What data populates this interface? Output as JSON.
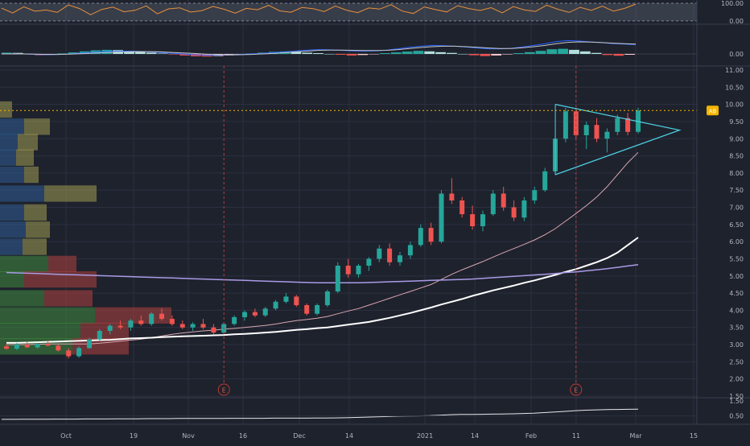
{
  "chart_data": [
    {
      "panel": "oscillator",
      "type": "line",
      "y_ticks": [
        "100.00",
        "0.00"
      ],
      "ylim": [
        0,
        100
      ],
      "band": [
        0,
        100
      ],
      "series": [
        {
          "values": [
            72,
            45,
            80,
            55,
            62,
            48,
            90,
            70,
            35,
            65,
            78,
            52,
            60,
            85,
            40,
            68,
            74,
            50,
            58,
            82,
            66,
            44,
            71,
            63,
            88,
            57,
            49,
            76,
            69,
            53,
            84,
            61,
            47,
            73,
            67,
            92,
            56,
            42,
            79,
            64,
            51,
            86,
            70,
            59,
            75,
            46,
            81,
            62,
            54,
            89,
            66,
            48,
            77,
            60,
            83,
            55,
            71,
            95
          ]
        }
      ]
    },
    {
      "panel": "macd",
      "type": "bar",
      "y_ticks": [
        "0.00"
      ],
      "ylim": [
        -0.6,
        0.6
      ],
      "series": [
        {
          "values": [
            0.05,
            0.04,
            -0.02,
            -0.05,
            -0.03,
            0.02,
            0.06,
            0.1,
            0.14,
            0.16,
            0.15,
            0.12,
            0.09,
            0.05,
            0.02,
            -0.02,
            -0.06,
            -0.09,
            -0.1,
            -0.08,
            -0.05,
            -0.02,
            0.02,
            0.05,
            0.08,
            0.1,
            0.08,
            0.05,
            0.03,
            0.0,
            -0.03,
            -0.06,
            -0.04,
            -0.01,
            0.03,
            0.06,
            0.09,
            0.12,
            0.1,
            0.07,
            0.04,
            0.0,
            -0.05,
            -0.08,
            -0.06,
            -0.02,
            0.03,
            0.07,
            0.12,
            0.18,
            0.2,
            0.16,
            0.1,
            0.04,
            -0.04,
            -0.07,
            -0.03
          ]
        },
        {
          "values": [
            0.0,
            0.01,
            0.0,
            -0.02,
            -0.03,
            -0.02,
            0.0,
            0.03,
            0.06,
            0.09,
            0.1,
            0.11,
            0.1,
            0.08,
            0.06,
            0.03,
            0.0,
            -0.03,
            -0.05,
            -0.05,
            -0.04,
            -0.02,
            0.0,
            0.02,
            0.05,
            0.08,
            0.12,
            0.15,
            0.17,
            0.16,
            0.14,
            0.12,
            0.11,
            0.12,
            0.15,
            0.2,
            0.26,
            0.3,
            0.33,
            0.32,
            0.3,
            0.27,
            0.23,
            0.2,
            0.2,
            0.22,
            0.27,
            0.33,
            0.4,
            0.48,
            0.52,
            0.5,
            0.47,
            0.44,
            0.4,
            0.38,
            0.36
          ]
        },
        {
          "values": [
            0.0,
            0.0,
            0.0,
            -0.01,
            -0.02,
            -0.02,
            -0.01,
            0.01,
            0.03,
            0.05,
            0.07,
            0.08,
            0.09,
            0.09,
            0.08,
            0.06,
            0.04,
            0.02,
            -0.01,
            -0.03,
            -0.04,
            -0.03,
            -0.02,
            0.0,
            0.02,
            0.05,
            0.08,
            0.11,
            0.14,
            0.15,
            0.15,
            0.14,
            0.13,
            0.13,
            0.14,
            0.17,
            0.21,
            0.25,
            0.28,
            0.3,
            0.3,
            0.28,
            0.26,
            0.23,
            0.21,
            0.21,
            0.24,
            0.28,
            0.33,
            0.4,
            0.45,
            0.47,
            0.46,
            0.44,
            0.42,
            0.4,
            0.38
          ]
        }
      ]
    },
    {
      "panel": "price",
      "type": "candlestick",
      "x_ticks": [
        "Oct",
        "19",
        "Nov",
        "16",
        "Dec",
        "14",
        "2021",
        "14",
        "Feb",
        "11",
        "Mar",
        "15"
      ],
      "y_ticks": [
        "1.50",
        "2.00",
        "2.50",
        "3.00",
        "3.50",
        "4.00",
        "4.50",
        "5.00",
        "5.50",
        "6.00",
        "6.50",
        "7.00",
        "7.50",
        "8.00",
        "8.50",
        "9.00",
        "9.50",
        "10.00",
        "10.50",
        "11.00"
      ],
      "ylim": [
        1.5,
        11.0
      ],
      "candles": [
        [
          2.95,
          3.02,
          2.85,
          2.88
        ],
        [
          2.88,
          3.05,
          2.84,
          3.0
        ],
        [
          3.0,
          3.08,
          2.9,
          2.92
        ],
        [
          2.92,
          3.05,
          2.88,
          3.02
        ],
        [
          3.02,
          3.1,
          2.95,
          2.97
        ],
        [
          2.97,
          3.0,
          2.8,
          2.83
        ],
        [
          2.83,
          2.9,
          2.6,
          2.66
        ],
        [
          2.66,
          2.95,
          2.62,
          2.9
        ],
        [
          2.9,
          3.2,
          2.88,
          3.15
        ],
        [
          3.15,
          3.45,
          3.1,
          3.4
        ],
        [
          3.4,
          3.6,
          3.3,
          3.55
        ],
        [
          3.55,
          3.7,
          3.45,
          3.5
        ],
        [
          3.5,
          3.75,
          3.4,
          3.7
        ],
        [
          3.7,
          3.85,
          3.55,
          3.6
        ],
        [
          3.6,
          3.95,
          3.55,
          3.9
        ],
        [
          3.9,
          4.05,
          3.7,
          3.75
        ],
        [
          3.75,
          3.85,
          3.55,
          3.6
        ],
        [
          3.6,
          3.7,
          3.45,
          3.5
        ],
        [
          3.5,
          3.65,
          3.4,
          3.6
        ],
        [
          3.6,
          3.75,
          3.45,
          3.5
        ],
        [
          3.5,
          3.6,
          3.3,
          3.35
        ],
        [
          3.35,
          3.65,
          3.3,
          3.6
        ],
        [
          3.6,
          3.85,
          3.55,
          3.8
        ],
        [
          3.8,
          4.0,
          3.7,
          3.95
        ],
        [
          3.95,
          4.05,
          3.8,
          3.85
        ],
        [
          3.85,
          4.1,
          3.8,
          4.05
        ],
        [
          4.05,
          4.3,
          4.0,
          4.25
        ],
        [
          4.25,
          4.5,
          4.2,
          4.4
        ],
        [
          4.4,
          4.45,
          4.1,
          4.15
        ],
        [
          4.15,
          4.2,
          3.85,
          3.9
        ],
        [
          3.9,
          4.2,
          3.85,
          4.15
        ],
        [
          4.15,
          4.6,
          4.1,
          4.55
        ],
        [
          4.55,
          5.4,
          4.5,
          5.3
        ],
        [
          5.3,
          5.5,
          4.95,
          5.05
        ],
        [
          5.05,
          5.35,
          4.95,
          5.3
        ],
        [
          5.3,
          5.55,
          5.15,
          5.5
        ],
        [
          5.5,
          5.9,
          5.4,
          5.8
        ],
        [
          5.8,
          5.95,
          5.3,
          5.4
        ],
        [
          5.4,
          5.7,
          5.3,
          5.6
        ],
        [
          5.6,
          6.0,
          5.5,
          5.9
        ],
        [
          5.9,
          6.5,
          5.85,
          6.4
        ],
        [
          6.4,
          6.55,
          5.9,
          6.0
        ],
        [
          6.0,
          7.5,
          5.95,
          7.4
        ],
        [
          7.4,
          7.85,
          7.1,
          7.2
        ],
        [
          7.2,
          7.3,
          6.7,
          6.8
        ],
        [
          6.8,
          7.05,
          6.35,
          6.45
        ],
        [
          6.45,
          6.9,
          6.3,
          6.8
        ],
        [
          6.8,
          7.5,
          6.75,
          7.4
        ],
        [
          7.4,
          7.6,
          6.9,
          7.0
        ],
        [
          7.0,
          7.2,
          6.6,
          6.7
        ],
        [
          6.7,
          7.3,
          6.6,
          7.2
        ],
        [
          7.2,
          7.6,
          7.1,
          7.5
        ],
        [
          7.5,
          8.15,
          7.45,
          8.05
        ],
        [
          8.05,
          9.1,
          8.0,
          9.0
        ],
        [
          9.0,
          9.9,
          8.9,
          9.8
        ],
        [
          9.8,
          9.9,
          9.0,
          9.1
        ],
        [
          9.1,
          9.5,
          8.7,
          9.4
        ],
        [
          9.4,
          9.6,
          8.9,
          9.0
        ],
        [
          9.0,
          9.3,
          8.6,
          9.2
        ],
        [
          9.2,
          9.7,
          9.1,
          9.6
        ],
        [
          9.6,
          9.75,
          9.1,
          9.2
        ],
        [
          9.2,
          9.9,
          9.15,
          9.82
        ]
      ],
      "moving_averages": [
        {
          "values": [
            3.0,
            3.0,
            3.0,
            3.01,
            3.02,
            3.02,
            3.02,
            3.02,
            3.02,
            3.04,
            3.07,
            3.1,
            3.13,
            3.16,
            3.2,
            3.25,
            3.3,
            3.34,
            3.37,
            3.4,
            3.42,
            3.45,
            3.47,
            3.5,
            3.53,
            3.56,
            3.6,
            3.65,
            3.7,
            3.73,
            3.77,
            3.82,
            3.9,
            3.98,
            4.05,
            4.15,
            4.25,
            4.35,
            4.45,
            4.55,
            4.65,
            4.75,
            4.9,
            5.05,
            5.18,
            5.3,
            5.42,
            5.55,
            5.68,
            5.8,
            5.92,
            6.05,
            6.2,
            6.38,
            6.6,
            6.82,
            7.05,
            7.3,
            7.6,
            7.95,
            8.3,
            8.6
          ]
        },
        {
          "values": [
            3.05,
            3.05,
            3.06,
            3.07,
            3.08,
            3.09,
            3.1,
            3.11,
            3.12,
            3.13,
            3.14,
            3.16,
            3.18,
            3.19,
            3.2,
            3.22,
            3.23,
            3.24,
            3.25,
            3.26,
            3.27,
            3.28,
            3.3,
            3.31,
            3.33,
            3.35,
            3.37,
            3.4,
            3.43,
            3.45,
            3.48,
            3.5,
            3.54,
            3.58,
            3.62,
            3.66,
            3.72,
            3.78,
            3.85,
            3.92,
            4.0,
            4.08,
            4.17,
            4.25,
            4.33,
            4.42,
            4.5,
            4.58,
            4.65,
            4.72,
            4.8,
            4.87,
            4.95,
            5.03,
            5.12,
            5.2,
            5.3,
            5.4,
            5.52,
            5.68,
            5.9,
            6.12
          ]
        },
        {
          "values": [
            5.1,
            5.09,
            5.08,
            5.07,
            5.06,
            5.05,
            5.04,
            5.03,
            5.02,
            5.01,
            5.0,
            4.99,
            4.98,
            4.97,
            4.96,
            4.95,
            4.94,
            4.93,
            4.92,
            4.91,
            4.9,
            4.89,
            4.88,
            4.87,
            4.86,
            4.85,
            4.84,
            4.83,
            4.82,
            4.81,
            4.8,
            4.8,
            4.8,
            4.8,
            4.8,
            4.81,
            4.82,
            4.83,
            4.84,
            4.85,
            4.86,
            4.87,
            4.88,
            4.89,
            4.9,
            4.91,
            4.93,
            4.95,
            4.97,
            4.99,
            5.01,
            5.03,
            5.05,
            5.07,
            5.1,
            5.12,
            5.15,
            5.18,
            5.21,
            5.25,
            5.29,
            5.33
          ]
        }
      ],
      "triangle": {
        "upper": [
          [
            53,
            10.0
          ],
          [
            61,
            9.55
          ]
        ],
        "lower": [
          [
            53,
            7.95
          ],
          [
            61,
            8.7
          ]
        ],
        "apex": [
          65,
          9.25
        ]
      },
      "current_price": {
        "value": 9.82,
        "label": "AB"
      },
      "events": [
        {
          "index": 21,
          "label": "E"
        },
        {
          "index": 55,
          "label": "E"
        }
      ],
      "volume_profile": [
        {
          "price": 9.85,
          "up": 0,
          "down": 15
        },
        {
          "price": 9.35,
          "up": 30,
          "down": 32
        },
        {
          "price": 8.9,
          "up": 22,
          "down": 25
        },
        {
          "price": 8.45,
          "up": 20,
          "down": 22
        },
        {
          "price": 7.95,
          "up": 30,
          "down": 18
        },
        {
          "price": 7.4,
          "up": 55,
          "down": 65
        },
        {
          "price": 6.85,
          "up": 30,
          "down": 28
        },
        {
          "price": 6.35,
          "up": 32,
          "down": 30
        },
        {
          "price": 5.85,
          "up": 28,
          "down": 30
        },
        {
          "price": 5.35,
          "up": 60,
          "down": 35
        },
        {
          "price": 4.9,
          "up": 30,
          "down": 90
        },
        {
          "price": 4.35,
          "up": 55,
          "down": 60
        },
        {
          "price": 3.85,
          "up": 118,
          "down": 95
        },
        {
          "price": 3.4,
          "up": 100,
          "down": 60
        },
        {
          "price": 2.95,
          "up": 90,
          "down": 70
        }
      ]
    },
    {
      "panel": "lower",
      "type": "line",
      "y_ticks": [
        "1.50",
        "0.50"
      ],
      "ylim": [
        0.0,
        1.6
      ],
      "series": [
        {
          "values": [
            0.27,
            0.27,
            0.28,
            0.28,
            0.28,
            0.29,
            0.29,
            0.29,
            0.3,
            0.3,
            0.3,
            0.31,
            0.31,
            0.31,
            0.32,
            0.32,
            0.32,
            0.33,
            0.33,
            0.33,
            0.33,
            0.33,
            0.34,
            0.34,
            0.34,
            0.34,
            0.35,
            0.35,
            0.35,
            0.35,
            0.36,
            0.36,
            0.37,
            0.38,
            0.4,
            0.42,
            0.44,
            0.46,
            0.48,
            0.49,
            0.5,
            0.52,
            0.55,
            0.58,
            0.6,
            0.6,
            0.61,
            0.62,
            0.63,
            0.64,
            0.66,
            0.68,
            0.72,
            0.76,
            0.8,
            0.85,
            0.88,
            0.9,
            0.92,
            0.93,
            0.94,
            0.95
          ]
        }
      ]
    }
  ]
}
